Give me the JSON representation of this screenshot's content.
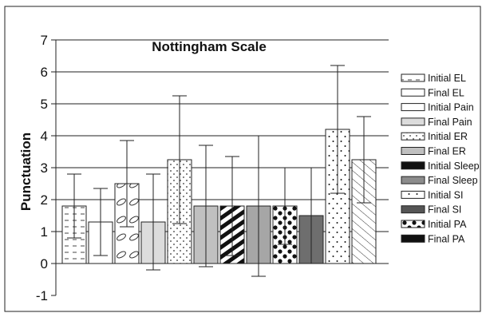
{
  "chart_data": {
    "type": "bar",
    "title": "Nottingham Scale",
    "xlabel": "",
    "ylabel": "Punctuation",
    "ylim": [
      -1,
      7
    ],
    "yticks": [
      -1,
      0,
      1,
      2,
      3,
      4,
      5,
      6,
      7
    ],
    "grid": "horizontal",
    "legend_position": "right",
    "series": [
      {
        "name": "Initial EL",
        "value": 1.8,
        "error": 1.0,
        "fill": "dashes"
      },
      {
        "name": "Final EL",
        "value": 1.3,
        "error": 1.05,
        "fill": "white"
      },
      {
        "name": "Initial Pain",
        "value": 2.5,
        "error": 1.35,
        "fill": "ellipses"
      },
      {
        "name": "Final Pain",
        "value": 1.3,
        "error": 1.5,
        "fill": "lightgray"
      },
      {
        "name": "Initial ER",
        "value": 3.25,
        "error": 2.0,
        "fill": "diagdots"
      },
      {
        "name": "Final ER",
        "value": 1.8,
        "error": 1.9,
        "fill": "gray"
      },
      {
        "name": "Initial Sleep",
        "value": 1.8,
        "error": 1.55,
        "fill": "diagstripes"
      },
      {
        "name": "Final Sleep",
        "value": 1.8,
        "error": 2.2,
        "fill": "midgray"
      },
      {
        "name": "Initial SI",
        "value": 1.8,
        "error": 1.2,
        "fill": "bigdots"
      },
      {
        "name": "Final SI",
        "value": 1.5,
        "error": 1.5,
        "fill": "darkgray"
      },
      {
        "name": "Initial PA",
        "value": 4.2,
        "error": 2.0,
        "fill": "smalldots"
      },
      {
        "name": "Final PA",
        "value": 3.25,
        "error": 1.35,
        "fill": "hatch"
      }
    ]
  }
}
